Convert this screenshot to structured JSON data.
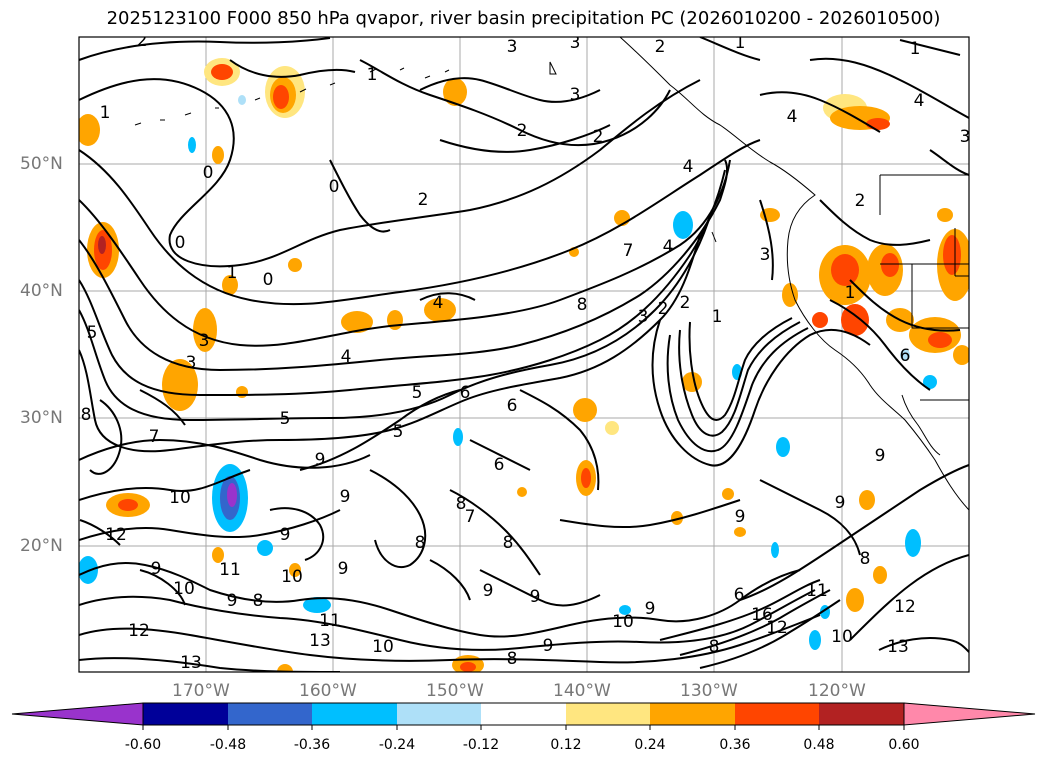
{
  "title": "2025123100 F000 850 hPa qvapor, river basin precipitation PC (2026010200 - 2026010500)",
  "lat_labels": [
    "50°N",
    "40°N",
    "30°N",
    "20°N"
  ],
  "lon_labels": [
    "170°W",
    "160°W",
    "150°W",
    "140°W",
    "130°W",
    "120°W"
  ],
  "colorbar": {
    "colors": [
      "#9933cc",
      "#000099",
      "#3366cc",
      "#00bfff",
      "#aee0f8",
      "#ffffff",
      "#ffe680",
      "#ffa500",
      "#ff4500",
      "#b22222",
      "#ff88aa"
    ],
    "ticks": [
      "-0.60",
      "-0.48",
      "-0.36",
      "-0.24",
      "-0.12",
      "0.12",
      "0.24",
      "0.36",
      "0.48",
      "0.60"
    ]
  },
  "contour_labels": [
    "2",
    "3",
    "3",
    "2",
    "1",
    "1",
    "4",
    "3",
    "1",
    "0",
    "0",
    "3",
    "2",
    "2",
    "4",
    "4",
    "2",
    "1",
    "0",
    "1",
    "0",
    "4",
    "4",
    "3",
    "5",
    "3",
    "8",
    "7",
    "1",
    "2",
    "2",
    "5",
    "3",
    "7",
    "4",
    "8",
    "5",
    "6",
    "6",
    "9",
    "7",
    "8",
    "9",
    "10",
    "12",
    "6",
    "5",
    "9",
    "8",
    "9",
    "9",
    "8",
    "11",
    "9",
    "10",
    "12",
    "11",
    "9",
    "8",
    "10",
    "13",
    "10",
    "9",
    "9",
    "8",
    "9",
    "10",
    "11",
    "12",
    "13",
    "9",
    "9",
    "12",
    "16",
    "6",
    "8",
    "13",
    "10",
    "9",
    "8",
    "2",
    "1",
    "6",
    "3"
  ]
}
